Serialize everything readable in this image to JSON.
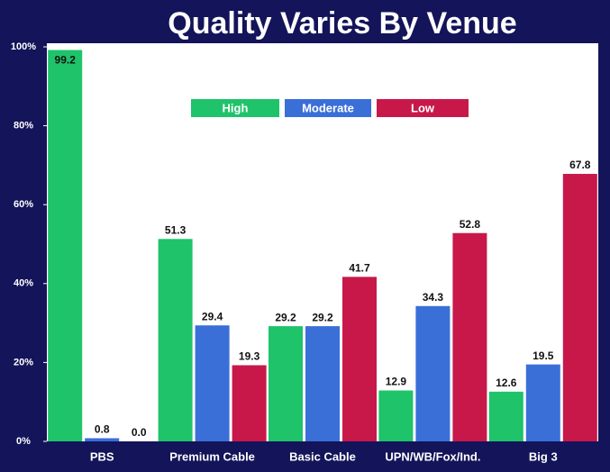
{
  "chart_data": {
    "type": "bar",
    "title": "Quality Varies By Venue",
    "categories": [
      "PBS",
      "Premium Cable",
      "Basic Cable",
      "UPN/WB/Fox/Ind.",
      "Big 3"
    ],
    "series": [
      {
        "name": "High",
        "color": "#1fc36a",
        "values": [
          99.2,
          51.3,
          29.2,
          12.9,
          12.6
        ],
        "value_labels": [
          "99.2",
          "51.3",
          "29.2",
          "12.9",
          "12.6"
        ]
      },
      {
        "name": "Moderate",
        "color": "#3a6fd8",
        "values": [
          0.8,
          29.4,
          29.2,
          34.3,
          19.5
        ],
        "value_labels": [
          "0.8",
          "29.4",
          "29.2",
          "34.3",
          "19.5"
        ]
      },
      {
        "name": "Low",
        "color": "#c8184a",
        "values": [
          0,
          19.3,
          41.7,
          52.8,
          67.8
        ],
        "value_labels": [
          "0.0",
          "19.3",
          "41.7",
          "52.8",
          "67.8"
        ]
      }
    ],
    "ylim": [
      0,
      100
    ],
    "yticks": [
      {
        "value": 0,
        "label": "0%"
      },
      {
        "value": 20,
        "label": "20%"
      },
      {
        "value": 40,
        "label": "40%"
      },
      {
        "value": 60,
        "label": "60%"
      },
      {
        "value": 80,
        "label": "80%"
      },
      {
        "value": 100,
        "label": "100%"
      }
    ],
    "legend": "top"
  }
}
